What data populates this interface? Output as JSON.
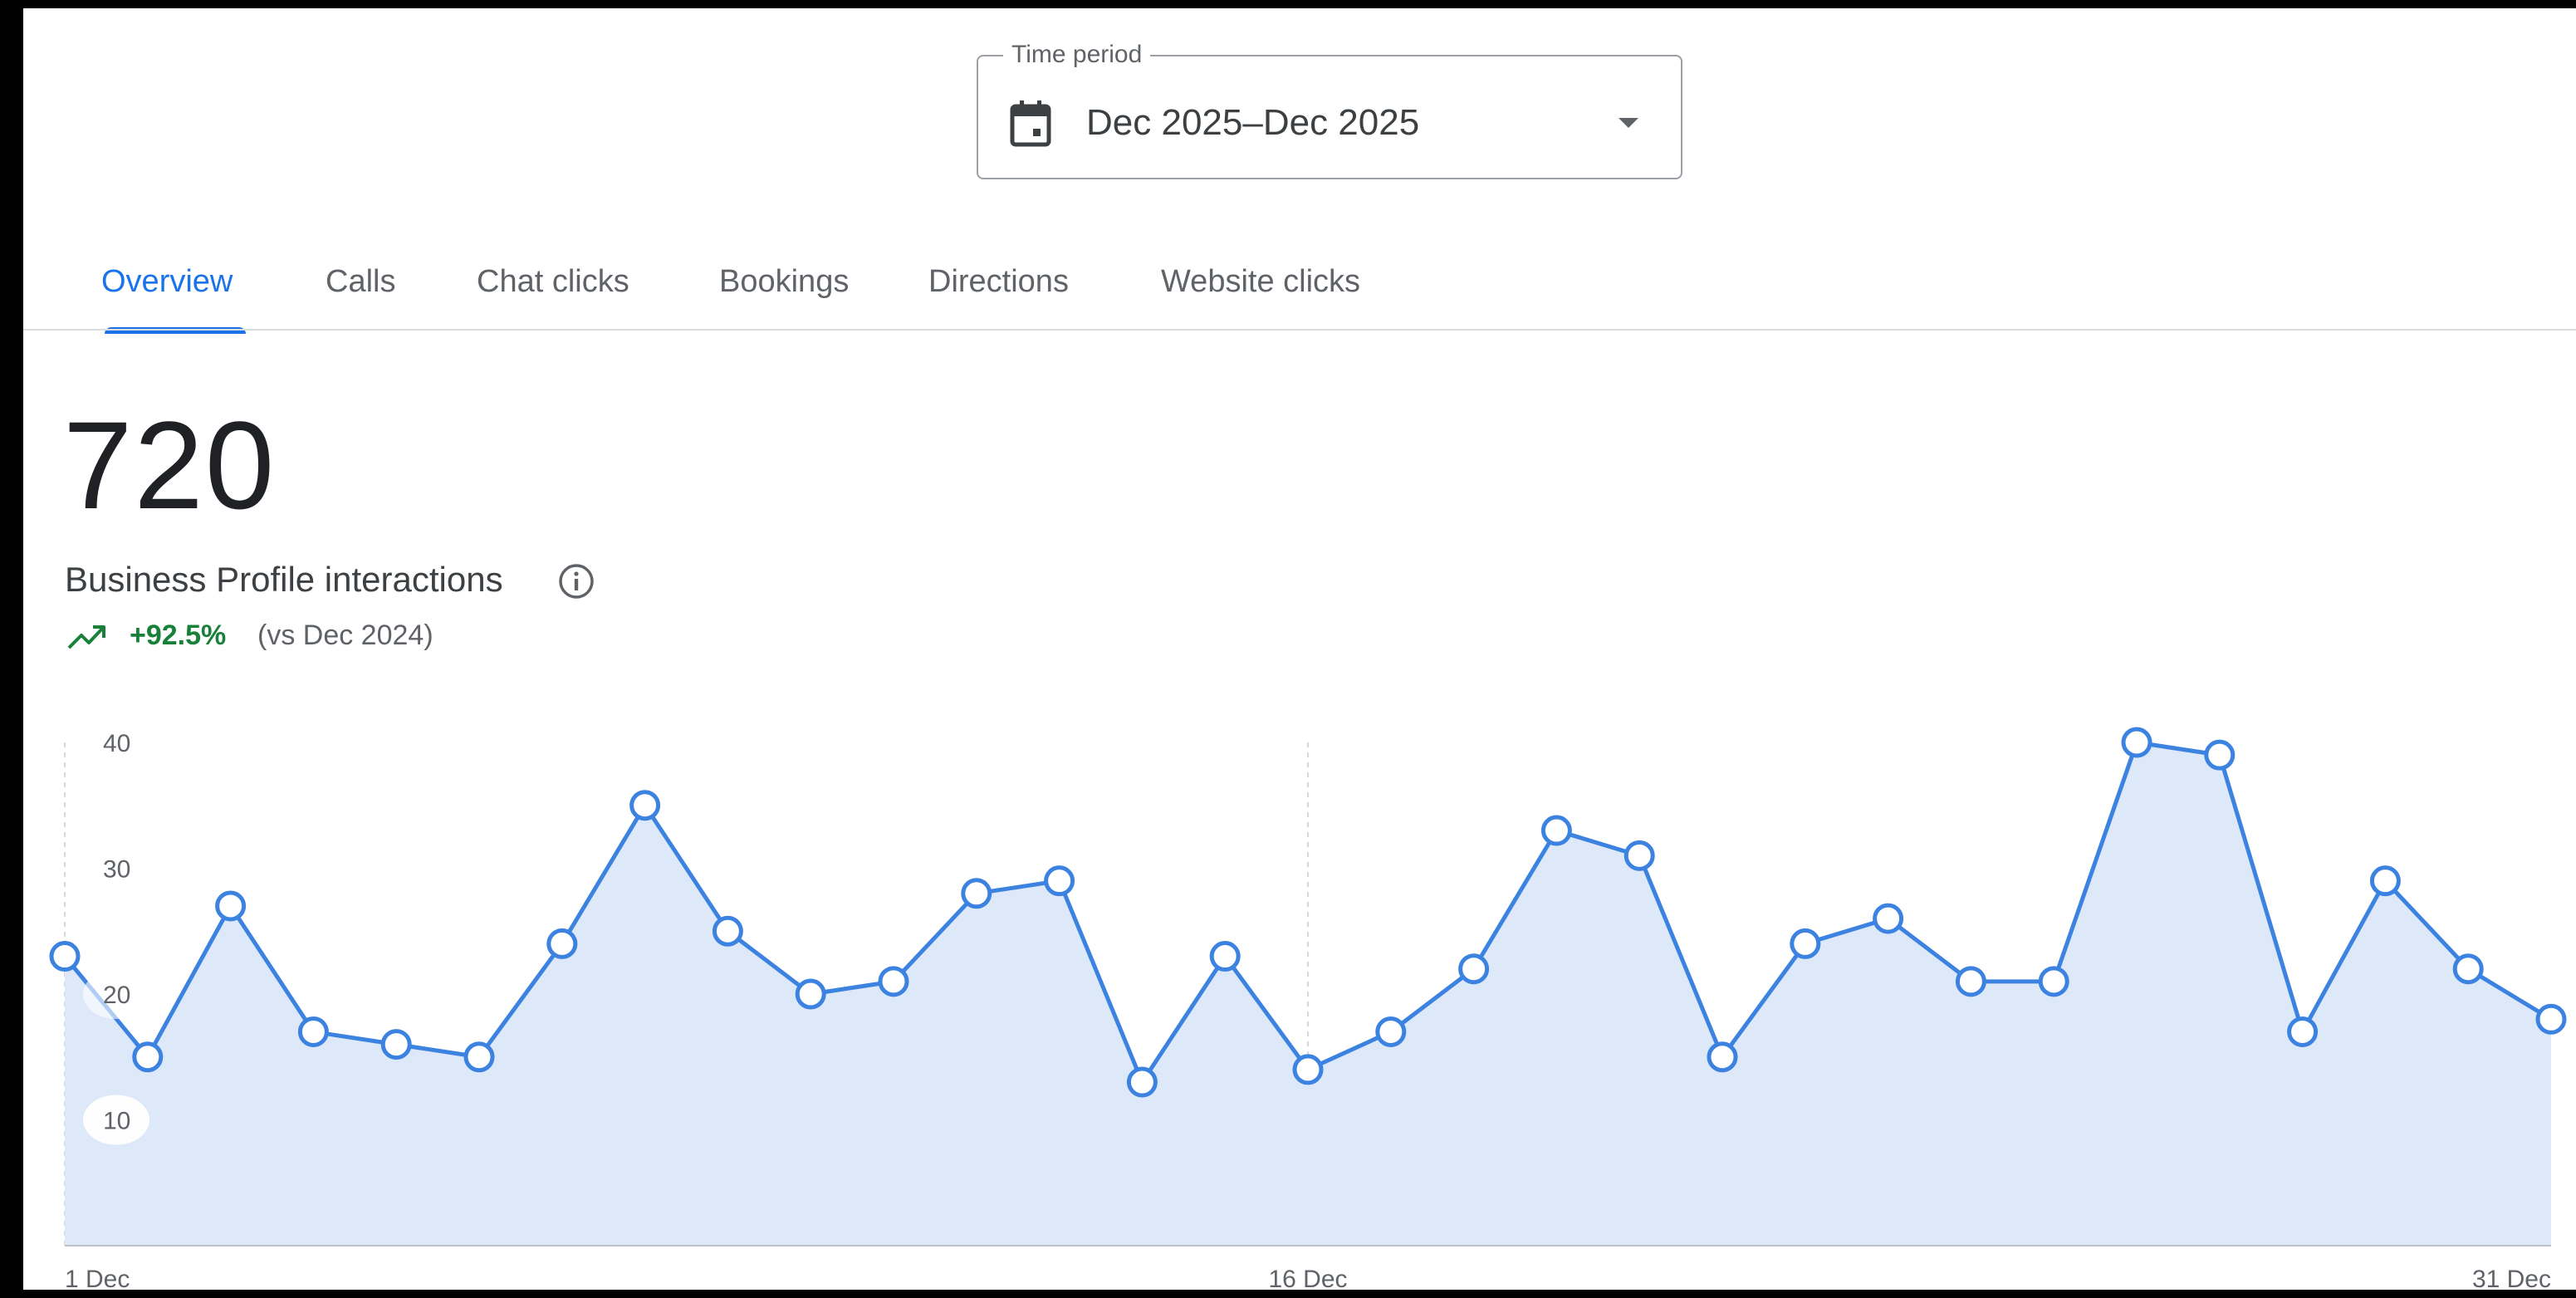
{
  "time_period": {
    "label": "Time period",
    "value": "Dec 2025–Dec 2025",
    "icon": "calendar-icon"
  },
  "tabs": [
    {
      "label": "Overview",
      "active": true
    },
    {
      "label": "Calls",
      "active": false
    },
    {
      "label": "Chat clicks",
      "active": false
    },
    {
      "label": "Bookings",
      "active": false
    },
    {
      "label": "Directions",
      "active": false
    },
    {
      "label": "Website clicks",
      "active": false
    }
  ],
  "metric": {
    "value": "720",
    "label": "Business Profile interactions",
    "info_icon": "info-icon",
    "trend": {
      "icon": "trending-up-icon",
      "percent": "+92.5%",
      "comparison": "(vs Dec 2024)"
    }
  },
  "colors": {
    "accent": "#1a73e8",
    "line": "#3c82e0",
    "area": "#dde8f8",
    "positive": "#188038"
  },
  "chart_data": {
    "type": "area",
    "x": [
      "1 Dec",
      "2 Dec",
      "3 Dec",
      "4 Dec",
      "5 Dec",
      "6 Dec",
      "7 Dec",
      "8 Dec",
      "9 Dec",
      "10 Dec",
      "11 Dec",
      "12 Dec",
      "13 Dec",
      "14 Dec",
      "15 Dec",
      "16 Dec",
      "17 Dec",
      "18 Dec",
      "19 Dec",
      "20 Dec",
      "21 Dec",
      "22 Dec",
      "23 Dec",
      "24 Dec",
      "25 Dec",
      "26 Dec",
      "27 Dec",
      "28 Dec",
      "29 Dec",
      "30 Dec",
      "31 Dec"
    ],
    "values": [
      23,
      15,
      27,
      17,
      16,
      15,
      24,
      35,
      25,
      20,
      21,
      28,
      29,
      13,
      23,
      14,
      17,
      22,
      33,
      31,
      15,
      24,
      26,
      21,
      21,
      40,
      39,
      17,
      29,
      22,
      18
    ],
    "y_ticks": [
      "10",
      "20",
      "30",
      "40"
    ],
    "x_tick_labels": [
      "1 Dec",
      "16 Dec",
      "31 Dec"
    ],
    "ylim": [
      0,
      40
    ],
    "grid": "vertical dashed at 1 Dec and 16 Dec"
  }
}
